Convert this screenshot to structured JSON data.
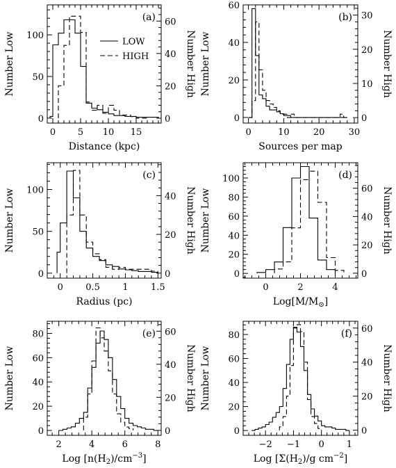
{
  "chart_data": [
    {
      "type": "histogram",
      "panel_label": "(a)",
      "xlabel": "Distance (kpc)",
      "ylabel_left": "Number Low",
      "ylabel_right": "Number High",
      "xlim": [
        -1,
        19.5
      ],
      "ylim_low": [
        -6,
        136
      ],
      "ylim_high": [
        -3,
        70
      ],
      "xticks": [
        0,
        5,
        10,
        15
      ],
      "yticks_low": [
        0,
        50,
        100
      ],
      "yticks_high": [
        0,
        20,
        40,
        60
      ],
      "legend": {
        "position": "top-right",
        "entries": [
          "LOW",
          "HIGH"
        ]
      },
      "series": [
        {
          "name": "LOW",
          "style": "solid",
          "edges": [
            -0.5,
            0,
            1,
            2,
            3,
            4,
            5,
            6,
            7,
            8,
            9,
            10,
            11,
            12,
            13,
            14,
            15,
            16,
            17,
            18,
            19
          ],
          "counts": [
            2,
            88,
            102,
            118,
            118,
            102,
            62,
            18,
            12,
            10,
            7,
            5,
            3,
            3,
            2,
            2,
            1,
            1,
            1,
            1
          ]
        },
        {
          "name": "HIGH",
          "style": "dashed",
          "edges": [
            1,
            2,
            3,
            4,
            5,
            6,
            7,
            8,
            9,
            10,
            11,
            12,
            13,
            14,
            15,
            16,
            17
          ],
          "counts": [
            20,
            45,
            63,
            63,
            53,
            10,
            5,
            8,
            3,
            8,
            5,
            2,
            2,
            1,
            0,
            0
          ]
        }
      ]
    },
    {
      "type": "histogram",
      "panel_label": "(b)",
      "xlabel": "Sources per map",
      "ylabel_left": "Number Low",
      "ylabel_right": "Number High",
      "xlim": [
        -1.5,
        31
      ],
      "ylim_low": [
        -3,
        60
      ],
      "ylim_high": [
        -1.6,
        33
      ],
      "xticks": [
        0,
        10,
        20,
        30
      ],
      "yticks_low": [
        0,
        20,
        40,
        60
      ],
      "yticks_high": [
        0,
        10,
        20,
        30
      ],
      "series": [
        {
          "name": "LOW",
          "style": "solid",
          "edges": [
            0,
            1,
            2,
            3,
            4,
            5,
            6,
            7,
            8,
            9,
            10,
            11,
            12,
            13,
            14,
            15,
            16,
            17,
            18,
            19,
            20,
            21,
            22,
            23,
            24,
            25,
            26,
            27,
            28
          ],
          "counts": [
            0,
            58,
            33,
            12,
            10,
            6,
            4,
            4,
            3,
            2,
            1,
            1,
            0,
            0,
            0,
            0,
            0,
            0,
            0,
            0,
            0,
            0,
            0,
            0,
            0,
            0,
            0,
            0
          ]
        },
        {
          "name": "HIGH",
          "style": "dashed",
          "edges": [
            0,
            1,
            2,
            3,
            4,
            5,
            6,
            7,
            8,
            9,
            10,
            11,
            12,
            13,
            14,
            15,
            16,
            17,
            18,
            19,
            20,
            21,
            22,
            23,
            24,
            25,
            26,
            27,
            28
          ],
          "counts": [
            0,
            5,
            28,
            14,
            8,
            5,
            4,
            3,
            2,
            1,
            1,
            0,
            1,
            0,
            0,
            0,
            0,
            0,
            0,
            0,
            0,
            0,
            0,
            0,
            0,
            0,
            1,
            0
          ]
        }
      ]
    },
    {
      "type": "histogram",
      "panel_label": "(c)",
      "xlabel": "Radius (pc)",
      "ylabel_left": "Number Low",
      "ylabel_right": "Number High",
      "xlim": [
        -0.2,
        1.55
      ],
      "ylim_low": [
        -6,
        132
      ],
      "ylim_high": [
        -2.6,
        57
      ],
      "xticks": [
        0,
        0.5,
        1,
        1.5
      ],
      "yticks_low": [
        0,
        50,
        100
      ],
      "yticks_high": [
        0,
        20,
        40
      ],
      "series": [
        {
          "name": "LOW",
          "style": "solid",
          "edges": [
            -0.05,
            0,
            0.1,
            0.2,
            0.3,
            0.4,
            0.5,
            0.6,
            0.7,
            0.8,
            0.9,
            1.0,
            1.1,
            1.2,
            1.3,
            1.4,
            1.5
          ],
          "counts": [
            25,
            60,
            122,
            90,
            50,
            30,
            20,
            15,
            10,
            8,
            5,
            4,
            3,
            2,
            2,
            1
          ]
        },
        {
          "name": "HIGH",
          "style": "dashed",
          "edges": [
            0.1,
            0.2,
            0.3,
            0.4,
            0.5,
            0.6,
            0.7,
            0.8,
            0.9,
            1.0,
            1.1,
            1.2,
            1.3,
            1.4,
            1.5
          ],
          "counts": [
            30,
            53,
            30,
            16,
            10,
            7,
            3,
            2,
            3,
            2,
            2,
            2,
            2,
            1
          ]
        }
      ]
    },
    {
      "type": "histogram",
      "panel_label": "(d)",
      "xlabel": "Log[M/M_sun]",
      "ylabel_left": "Number Low",
      "ylabel_right": "Number High",
      "xlim": [
        -1.3,
        5.3
      ],
      "ylim_low": [
        -5,
        116
      ],
      "ylim_high": [
        -3.5,
        78
      ],
      "xticks": [
        0,
        2,
        4
      ],
      "yticks_low": [
        0,
        20,
        40,
        60,
        80,
        100
      ],
      "yticks_high": [
        0,
        20,
        40,
        60
      ],
      "series": [
        {
          "name": "LOW",
          "style": "solid",
          "edges": [
            -0.5,
            0,
            0.5,
            1,
            1.5,
            2,
            2.5,
            3,
            3.5,
            4
          ],
          "counts": [
            1,
            4,
            12,
            48,
            100,
            112,
            58,
            14,
            4
          ]
        },
        {
          "name": "HIGH",
          "style": "dashed",
          "edges": [
            0.5,
            1,
            1.5,
            2,
            2.5,
            3,
            3.5,
            4,
            4.5
          ],
          "counts": [
            3,
            8,
            32,
            66,
            72,
            50,
            11,
            2
          ]
        }
      ]
    },
    {
      "type": "histogram",
      "panel_label": "(e)",
      "xlabel": "Log [n(H2)/cm^-3]",
      "ylabel_left": "Number Low",
      "ylabel_right": "Number High",
      "xlim": [
        1.3,
        8.2
      ],
      "ylim_low": [
        -4,
        90
      ],
      "ylim_high": [
        -3,
        66
      ],
      "xticks": [
        2,
        4,
        6,
        8
      ],
      "yticks_low": [
        0,
        20,
        40,
        60,
        80
      ],
      "yticks_high": [
        0,
        20,
        40,
        60
      ],
      "series": [
        {
          "name": "LOW",
          "style": "solid",
          "edges": [
            2,
            2.25,
            2.5,
            2.75,
            3,
            3.25,
            3.5,
            3.75,
            4,
            4.25,
            4.5,
            4.75,
            5,
            5.25,
            5.5,
            5.75,
            6,
            6.25,
            6.5,
            6.75,
            7,
            7.25,
            7.5,
            7.75,
            8
          ],
          "counts": [
            0,
            1,
            2,
            3,
            6,
            10,
            15,
            35,
            52,
            72,
            82,
            75,
            60,
            42,
            28,
            18,
            10,
            6,
            4,
            3,
            2,
            1,
            1,
            0
          ]
        },
        {
          "name": "HIGH",
          "style": "dashed",
          "edges": [
            3.5,
            3.75,
            4,
            4.25,
            4.5,
            4.75,
            5,
            5.25,
            5.5,
            5.75,
            6,
            6.25,
            6.5
          ],
          "counts": [
            8,
            22,
            42,
            62,
            56,
            48,
            36,
            22,
            10,
            5,
            2,
            1
          ]
        }
      ]
    },
    {
      "type": "histogram",
      "panel_label": "(f)",
      "xlabel": "Log [Sigma(H2)/g cm^-2]",
      "ylabel_left": "Number Low",
      "ylabel_right": "Number High",
      "xlim": [
        -2.8,
        1.3
      ],
      "ylim_low": [
        -4,
        91
      ],
      "ylim_high": [
        -3,
        64
      ],
      "xticks": [
        -2,
        -1,
        0,
        1
      ],
      "yticks_low": [
        0,
        20,
        40,
        60,
        80
      ],
      "yticks_high": [
        0,
        20,
        40,
        60
      ],
      "series": [
        {
          "name": "LOW",
          "style": "solid",
          "edges": [
            -2.5,
            -2.375,
            -2.25,
            -2.125,
            -2,
            -1.875,
            -1.75,
            -1.625,
            -1.5,
            -1.375,
            -1.25,
            -1.125,
            -1,
            -0.875,
            -0.75,
            -0.625,
            -0.5,
            -0.375,
            -0.25,
            -0.125,
            0,
            0.125,
            0.25,
            0.375,
            0.5,
            0.625,
            0.75,
            0.875,
            1.0
          ],
          "counts": [
            0,
            1,
            2,
            3,
            5,
            7,
            11,
            15,
            20,
            35,
            55,
            76,
            86,
            82,
            70,
            50,
            30,
            18,
            12,
            8,
            4,
            3,
            3,
            2,
            1,
            1,
            1,
            0
          ]
        },
        {
          "name": "HIGH",
          "style": "dashed",
          "edges": [
            -1.5,
            -1.375,
            -1.25,
            -1.125,
            -1,
            -0.875,
            -0.75,
            -0.625,
            -0.5,
            -0.375,
            -0.25,
            -0.125,
            0
          ],
          "counts": [
            2,
            8,
            20,
            38,
            60,
            62,
            58,
            40,
            18,
            8,
            4,
            1
          ]
        }
      ]
    }
  ]
}
